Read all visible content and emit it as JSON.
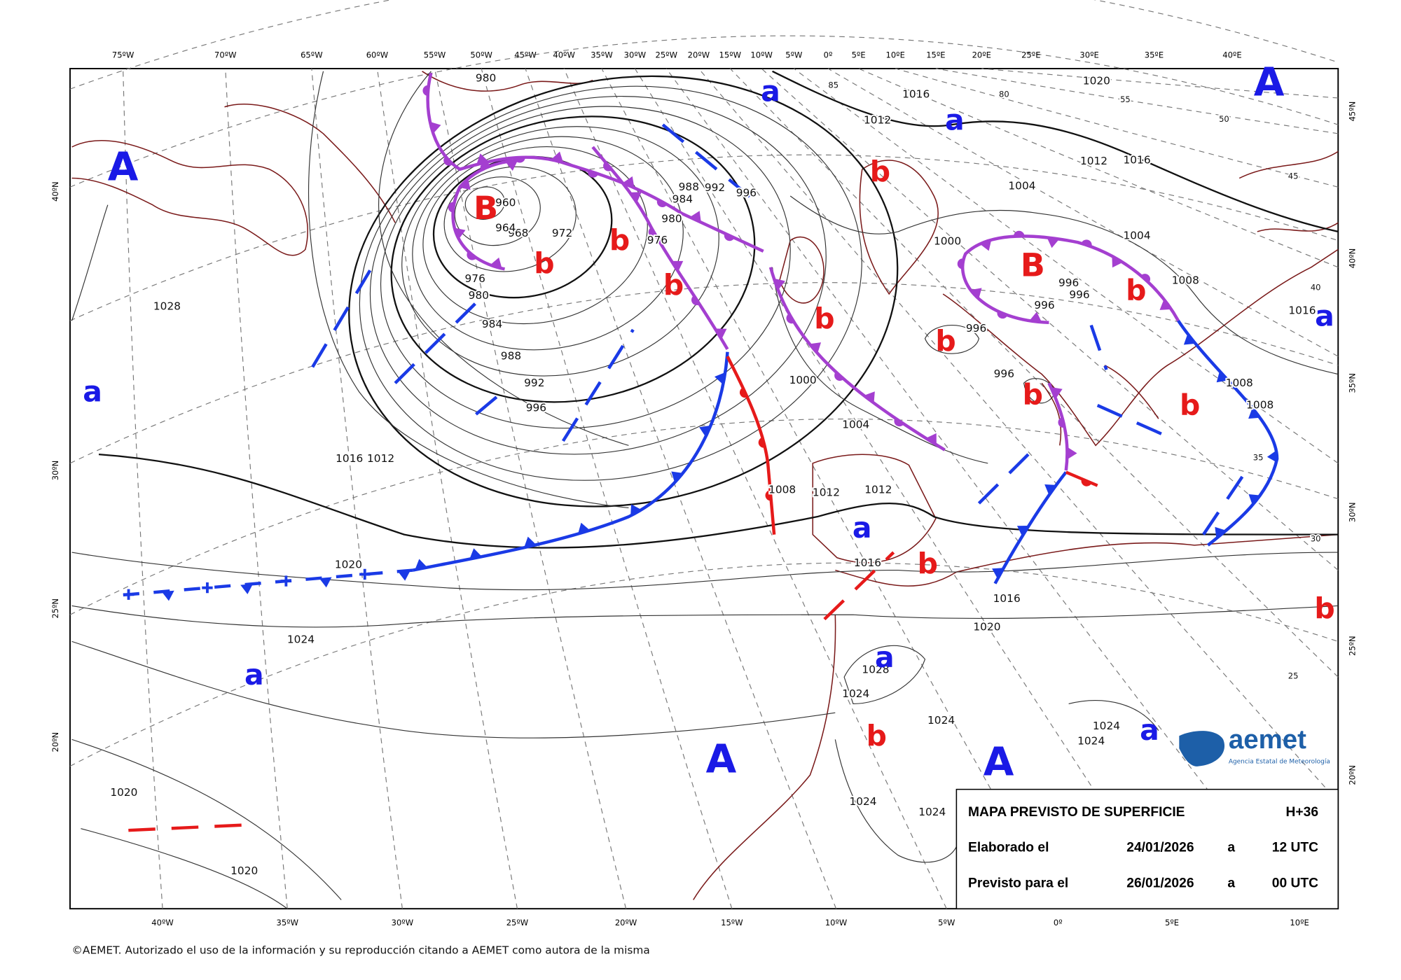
{
  "top_longitudes": [
    "75ºW",
    "70ºW",
    "65ºW",
    "60ºW",
    "55ºW",
    "50ºW",
    "45ºW",
    "40ºW",
    "35ºW",
    "30ºW",
    "25ºW",
    "20ºW",
    "15ºW",
    "10ºW",
    "5ºW",
    "0º",
    "5ºE",
    "10ºE",
    "15ºE",
    "20ºE",
    "25ºE",
    "30ºE",
    "35ºE",
    "40ºE"
  ],
  "bottom_longitudes": [
    "40ºW",
    "35ºW",
    "30ºW",
    "25ºW",
    "20ºW",
    "15ºW",
    "10ºW",
    "5ºW",
    "0º",
    "5ºE",
    "10ºE"
  ],
  "left_latitudes": [
    "40ºN",
    "30ºN",
    "25ºN",
    "20ºN"
  ],
  "right_latitudes": [
    "45ºN",
    "40ºN",
    "35ºN",
    "30ºN",
    "25ºN",
    "20ºN"
  ],
  "pressure_centers": [
    "A",
    "A",
    "A",
    "A",
    "B",
    "B",
    "a",
    "a",
    "a",
    "a",
    "a",
    "a",
    "a",
    "a",
    "b",
    "b",
    "b",
    "b",
    "b",
    "b",
    "b",
    "b",
    "b",
    "b",
    "b",
    "b"
  ],
  "isobar_labels": [
    "980",
    "1028",
    "1012",
    "1016",
    "976",
    "980",
    "984",
    "988",
    "992",
    "996",
    "972",
    "968",
    "964",
    "960",
    "980",
    "976",
    "984",
    "988",
    "992",
    "996",
    "1000",
    "1004",
    "1008",
    "1012",
    "1012",
    "1016",
    "1020",
    "1024",
    "1020",
    "1020",
    "1028",
    "1024",
    "1024",
    "1024",
    "1024",
    "1024",
    "1024",
    "1016",
    "1020",
    "1012",
    "1016",
    "1004",
    "1000",
    "1004",
    "1008",
    "996",
    "996",
    "996",
    "996",
    "996",
    "1008",
    "1008",
    "1016",
    "1020",
    "1016",
    "1012",
    "55",
    "50",
    "45",
    "40",
    "35",
    "30",
    "25",
    "85",
    "80"
  ],
  "info_box": {
    "title": "MAPA PREVISTO DE SUPERFICIE",
    "lead_time": "H+36",
    "rows": [
      [
        "Elaborado el",
        "24/01/2026",
        "a",
        "12 UTC"
      ],
      [
        "Previsto para el",
        "26/01/2026",
        "a",
        "00 UTC"
      ]
    ]
  },
  "logo": {
    "name": "aemet",
    "subtitle": "Agencia Estatal de Meteorología"
  },
  "footer": "©AEMET. Autorizado el uso de la información y su reproducción citando a AEMET como autora de la misma"
}
